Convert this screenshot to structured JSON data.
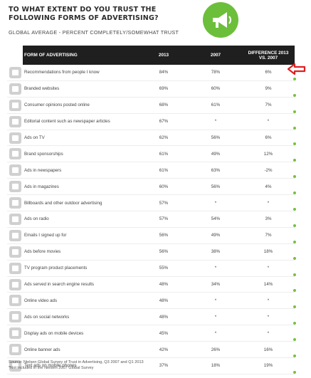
{
  "title_line1": "TO WHAT EXTENT DO YOU TRUST THE",
  "title_line2": "FOLLOWING FORMS OF ADVERTISING?",
  "subtitle": "GLOBAL AVERAGE - PERCENT COMPLETELY/SOMEWHAT TRUST",
  "logo_icon": "megaphone-icon",
  "accent_color": "#6cbf3a",
  "header": {
    "form": "FORM OF ADVERTISING",
    "y2013": "2013",
    "y2007": "2007",
    "diff_line1": "DIFFERENCE 2013",
    "diff_line2": "VS. 2007"
  },
  "rows": [
    {
      "icon": "people-icon",
      "label": "Recommendations from people I know",
      "y2013": "84%",
      "y2007": "78%",
      "diff": "6%"
    },
    {
      "icon": "browser-icon",
      "label": "Branded websites",
      "y2013": "69%",
      "y2007": "60%",
      "diff": "9%"
    },
    {
      "icon": "laptop-icon",
      "label": "Consumer opinions posted online",
      "y2013": "68%",
      "y2007": "61%",
      "diff": "7%"
    },
    {
      "icon": "document-icon",
      "label": "Editorial content such as newspaper articles",
      "y2013": "67%",
      "y2007": "*",
      "diff": "*"
    },
    {
      "icon": "tv-icon",
      "label": "Ads on TV",
      "y2013": "62%",
      "y2007": "56%",
      "diff": "6%"
    },
    {
      "icon": "sponsorship-icon",
      "label": "Brand sponsorships",
      "y2013": "61%",
      "y2007": "49%",
      "diff": "12%"
    },
    {
      "icon": "newspaper-icon",
      "label": "Ads in newspapers",
      "y2013": "61%",
      "y2007": "63%",
      "diff": "-2%"
    },
    {
      "icon": "magazine-icon",
      "label": "Ads in magazines",
      "y2013": "60%",
      "y2007": "56%",
      "diff": "4%"
    },
    {
      "icon": "billboard-icon",
      "label": "Billboards and other outdoor advertising",
      "y2013": "57%",
      "y2007": "*",
      "diff": "*"
    },
    {
      "icon": "radio-icon",
      "label": "Ads on radio",
      "y2013": "57%",
      "y2007": "54%",
      "diff": "3%"
    },
    {
      "icon": "email-icon",
      "label": "Emails I signed up for",
      "y2013": "56%",
      "y2007": "49%",
      "diff": "7%"
    },
    {
      "icon": "movie-icon",
      "label": "Ads before movies",
      "y2013": "56%",
      "y2007": "38%",
      "diff": "18%"
    },
    {
      "icon": "tv-program-icon",
      "label": "TV program product placements",
      "y2013": "55%",
      "y2007": "*",
      "diff": "*"
    },
    {
      "icon": "cursor-icon",
      "label": "Ads served in search engine results",
      "y2013": "48%",
      "y2007": "34%",
      "diff": "14%"
    },
    {
      "icon": "video-icon",
      "label": "Online video ads",
      "y2013": "48%",
      "y2007": "*",
      "diff": "*"
    },
    {
      "icon": "social-icon",
      "label": "Ads on social networks",
      "y2013": "48%",
      "y2007": "*",
      "diff": "*"
    },
    {
      "icon": "mobile-icon",
      "label": "Display ads on mobile devices",
      "y2013": "45%",
      "y2007": "*",
      "diff": "*"
    },
    {
      "icon": "banner-icon",
      "label": "Online banner ads",
      "y2013": "42%",
      "y2007": "26%",
      "diff": "16%"
    },
    {
      "icon": "sms-icon",
      "label": "Text ads on mobile phones",
      "y2013": "37%",
      "y2007": "18%",
      "diff": "19%"
    }
  ],
  "footnote_line1": "Source: Nielsen Global Survey of Trust in Advertising, Q3 2007 and Q1 2013",
  "footnote_line2": "*Not included in the Nielsen 2007 Global Survey",
  "arrow_color": "#e02020"
}
